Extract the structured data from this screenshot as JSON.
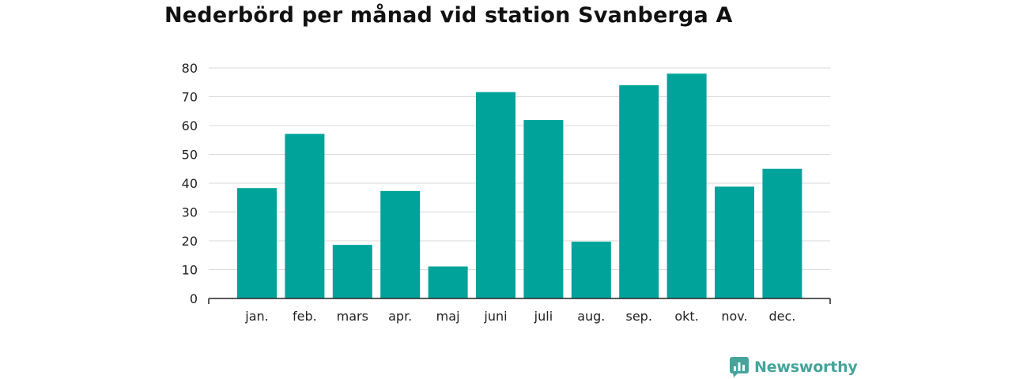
{
  "title": "Nederbörd per månad vid station Svanberga A",
  "brand": {
    "name": "Newsworthy",
    "color": "#44a59a"
  },
  "colors": {
    "bar": "#00a39a",
    "grid": "#d9d9d9",
    "axis": "#222222",
    "text": "#222222"
  },
  "chart_data": {
    "type": "bar",
    "title": "Nederbörd per månad vid station Svanberga A",
    "xlabel": "",
    "ylabel": "",
    "categories": [
      "jan.",
      "feb.",
      "mars",
      "apr.",
      "maj",
      "juni",
      "juli",
      "aug.",
      "sep.",
      "okt.",
      "nov.",
      "dec."
    ],
    "values": [
      38.3,
      57.1,
      18.6,
      37.3,
      11.1,
      71.6,
      61.9,
      19.7,
      74,
      78,
      38.8,
      45
    ],
    "ylim": [
      0,
      80
    ],
    "yticks": [
      0,
      10,
      20,
      30,
      40,
      50,
      60,
      70,
      80
    ],
    "grid": true,
    "legend": "none"
  }
}
